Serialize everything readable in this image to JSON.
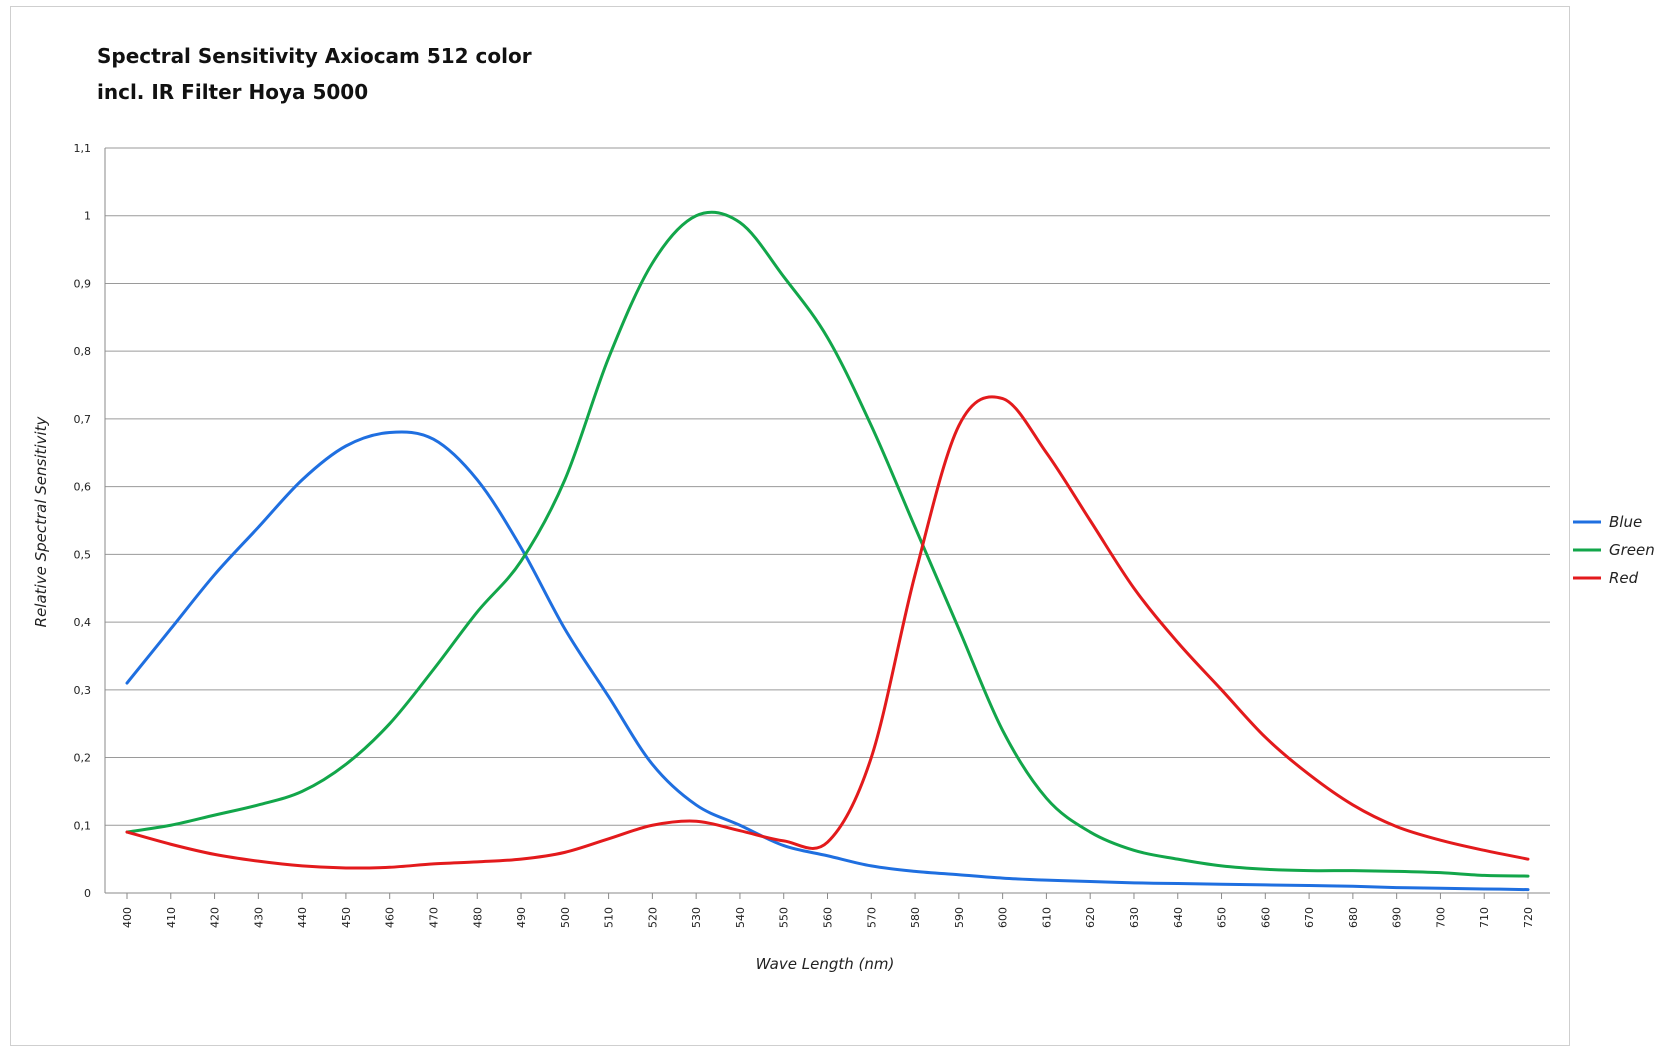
{
  "chart_data": {
    "type": "line",
    "title": "Spectral Sensitivity Axiocam 512 color",
    "subtitle": "incl. IR Filter Hoya 5000",
    "xlabel": "Wave Length (nm)",
    "ylabel": "Relative Spectral Sensitivity",
    "x": [
      400,
      410,
      420,
      430,
      440,
      450,
      460,
      470,
      480,
      490,
      500,
      510,
      520,
      530,
      540,
      550,
      560,
      570,
      580,
      590,
      600,
      610,
      620,
      630,
      640,
      650,
      660,
      670,
      680,
      690,
      700,
      710,
      720
    ],
    "x_tick_labels": [
      "400",
      "410",
      "420",
      "430",
      "440",
      "450",
      "460",
      "470",
      "480",
      "490",
      "500",
      "510",
      "520",
      "530",
      "540",
      "550",
      "560",
      "570",
      "580",
      "590",
      "600",
      "610",
      "620",
      "630",
      "640",
      "650",
      "660",
      "670",
      "680",
      "690",
      "700",
      "710",
      "720"
    ],
    "y_ticks": [
      0,
      0.1,
      0.2,
      0.3,
      0.4,
      0.5,
      0.6,
      0.7,
      0.8,
      0.9,
      1,
      1.1
    ],
    "y_tick_labels": [
      "0",
      "0,1",
      "0,2",
      "0,3",
      "0,4",
      "0,5",
      "0,6",
      "0,7",
      "0,8",
      "0,9",
      "1",
      "1,1"
    ],
    "ylim": [
      0,
      1.1
    ],
    "xlim": [
      400,
      720
    ],
    "grid": "horizontal",
    "legend_position": "right",
    "series": [
      {
        "name": "Blue",
        "color": "#1f6fe0",
        "values": [
          0.31,
          0.39,
          0.47,
          0.54,
          0.61,
          0.66,
          0.68,
          0.67,
          0.61,
          0.51,
          0.39,
          0.29,
          0.19,
          0.13,
          0.1,
          0.07,
          0.055,
          0.04,
          0.032,
          0.027,
          0.022,
          0.019,
          0.017,
          0.015,
          0.014,
          0.013,
          0.012,
          0.011,
          0.01,
          0.008,
          0.007,
          0.006,
          0.005
        ]
      },
      {
        "name": "Green",
        "color": "#12a64a",
        "values": [
          0.09,
          0.1,
          0.115,
          0.13,
          0.15,
          0.19,
          0.25,
          0.33,
          0.415,
          0.49,
          0.61,
          0.79,
          0.93,
          1.0,
          0.99,
          0.91,
          0.82,
          0.69,
          0.54,
          0.39,
          0.24,
          0.14,
          0.09,
          0.063,
          0.05,
          0.04,
          0.035,
          0.033,
          0.033,
          0.032,
          0.03,
          0.026,
          0.025
        ]
      },
      {
        "name": "Red",
        "color": "#e31a1c",
        "values": [
          0.09,
          0.072,
          0.057,
          0.047,
          0.04,
          0.037,
          0.038,
          0.043,
          0.046,
          0.05,
          0.06,
          0.08,
          0.1,
          0.106,
          0.092,
          0.077,
          0.075,
          0.2,
          0.47,
          0.69,
          0.73,
          0.65,
          0.55,
          0.45,
          0.37,
          0.3,
          0.23,
          0.175,
          0.13,
          0.098,
          0.078,
          0.063,
          0.05
        ]
      }
    ]
  }
}
